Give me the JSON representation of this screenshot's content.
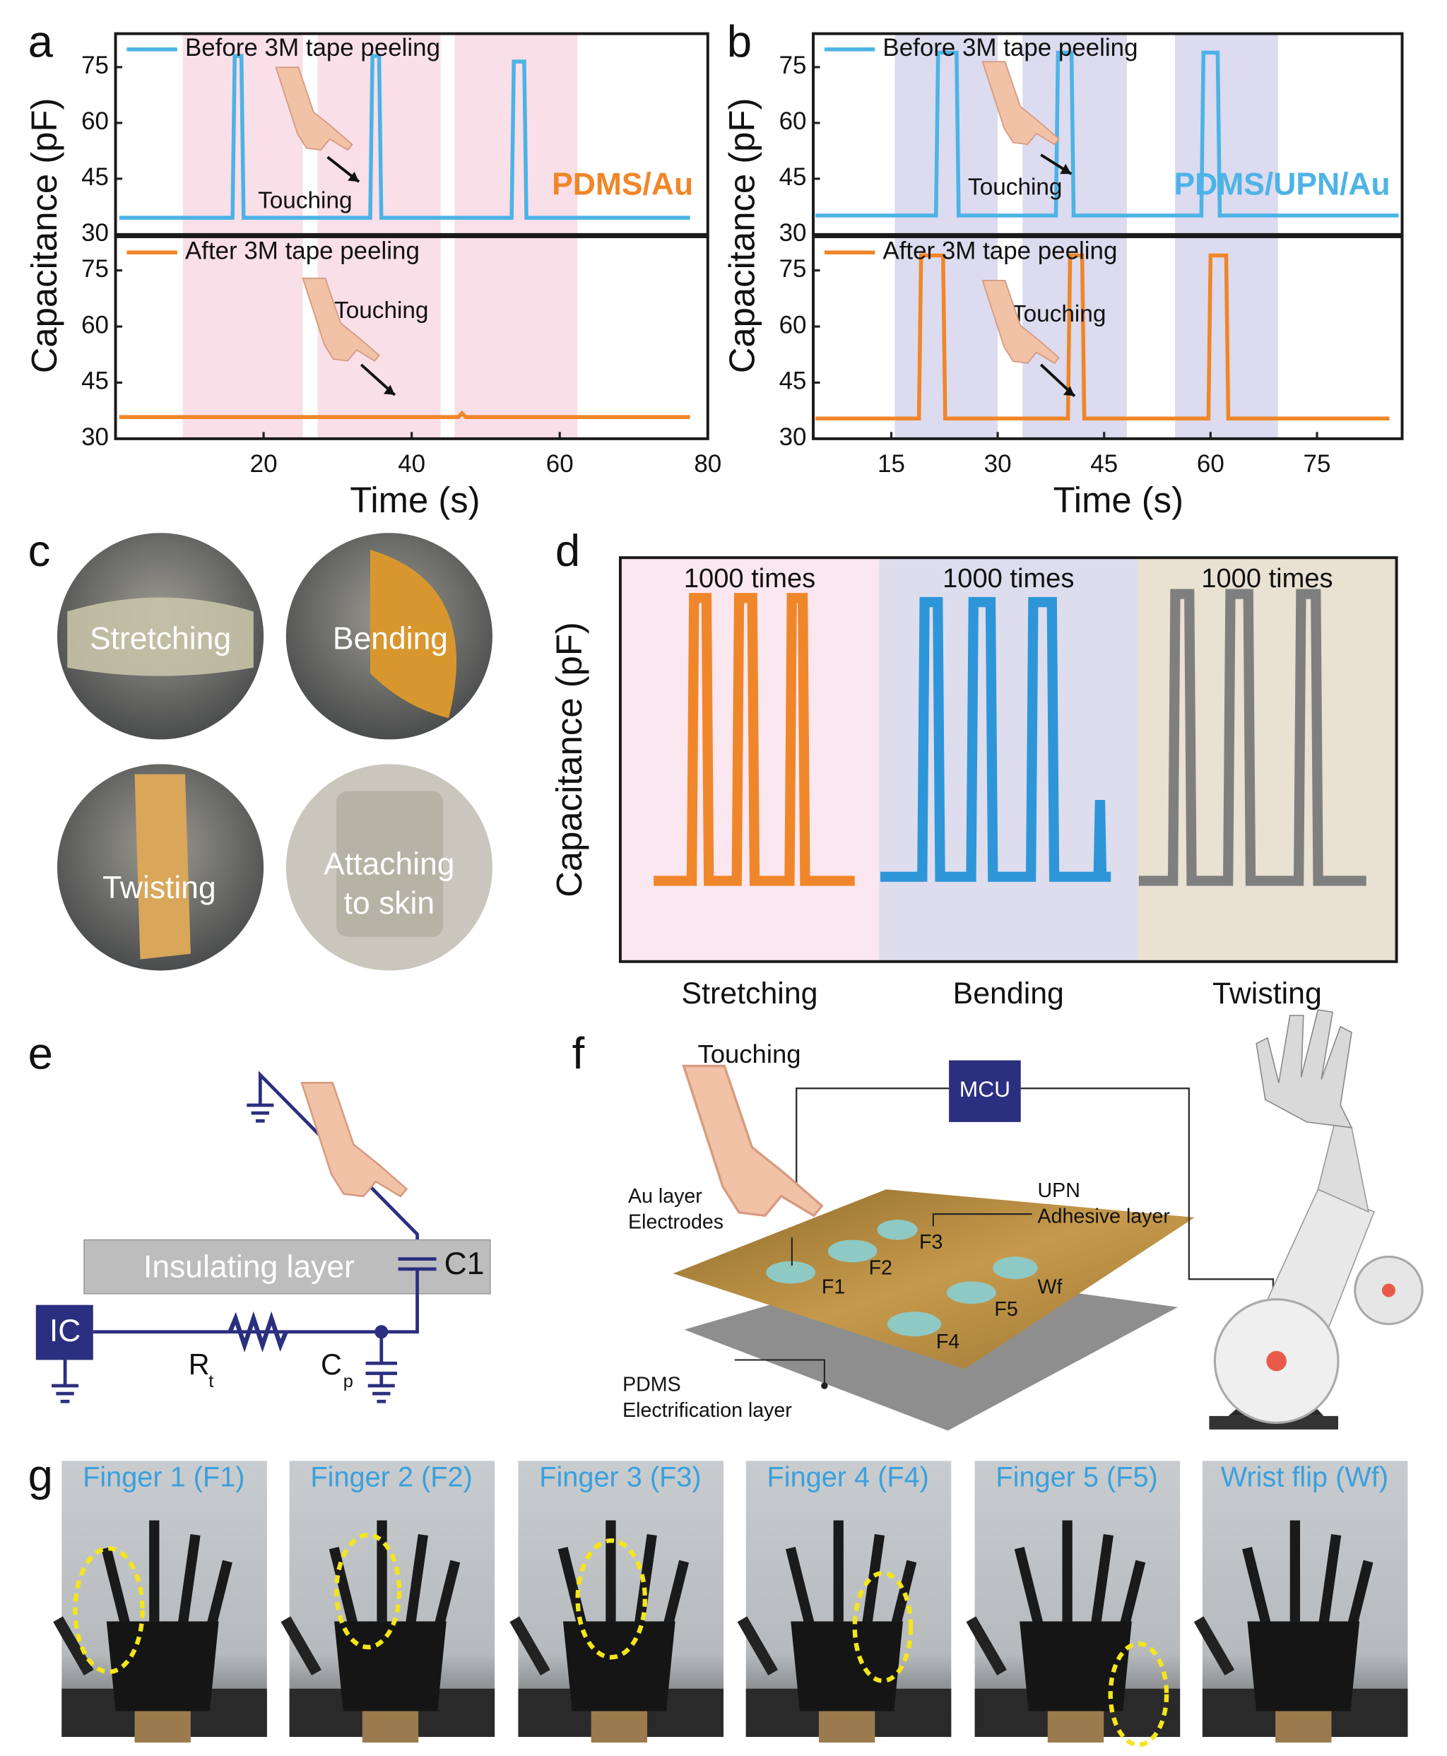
{
  "panel_labels": [
    "a",
    "b",
    "c",
    "d",
    "e",
    "f",
    "g"
  ],
  "chart_data": [
    {
      "type": "line",
      "ylabel": "Capacitance (pF)",
      "xlim": [
        0,
        80
      ],
      "ylim": [
        30,
        84
      ],
      "yticks": [
        30,
        45,
        60,
        75
      ],
      "shaded_regions": [
        [
          9.1,
          25.3
        ],
        [
          27.3,
          43.9
        ],
        [
          45.8,
          62.4
        ]
      ],
      "shade_color": "#f9dfe8",
      "series": [
        {
          "name": "Before 3M tape peeling",
          "color": "#4db3e6",
          "x": [
            0.5,
            15.8,
            16.1,
            17.0,
            17.3,
            34.4,
            34.7,
            35.6,
            35.9,
            53.5,
            53.8,
            55.2,
            55.5,
            77.6
          ],
          "values": [
            34.5,
            34.5,
            78,
            78,
            34.5,
            34.5,
            78,
            78,
            34.5,
            34.5,
            76.5,
            76.5,
            34.5,
            34.5
          ]
        }
      ],
      "annotations": [
        "Touching",
        "PDMS/Au"
      ]
    },
    {
      "type": "line",
      "xlabel": "Time (s)",
      "xlim": [
        0,
        80
      ],
      "ylim": [
        30,
        84
      ],
      "yticks": [
        30,
        45,
        60,
        75
      ],
      "xticks": [
        20,
        40,
        60,
        80
      ],
      "shaded_regions": [
        [
          9.1,
          25.3
        ],
        [
          27.3,
          43.9
        ],
        [
          45.8,
          62.4
        ]
      ],
      "shade_color": "#f9dfe8",
      "series": [
        {
          "name": "After 3M tape peeling",
          "color": "#f0862a",
          "x": [
            0.5,
            46.3,
            46.8,
            47.3,
            77.6
          ],
          "values": [
            35.8,
            35.8,
            36.8,
            35.8,
            35.8
          ]
        }
      ],
      "annotations": [
        "Touching"
      ]
    },
    {
      "type": "line",
      "ylabel": "Capacitance (pF)",
      "xlim": [
        4,
        87
      ],
      "ylim": [
        30,
        84
      ],
      "yticks": [
        30,
        45,
        60,
        75
      ],
      "shaded_regions": [
        [
          15.5,
          30
        ],
        [
          33.5,
          48.2
        ],
        [
          55,
          69.5
        ]
      ],
      "shade_color": "#dcdbef",
      "series": [
        {
          "name": "Before 3M tape peeling",
          "color": "#4db3e6",
          "x": [
            4.3,
            21.3,
            21.6,
            24.2,
            24.5,
            38.2,
            38.5,
            40.4,
            40.7,
            58.7,
            59,
            61,
            61.3,
            86.5
          ],
          "values": [
            35.1,
            35.1,
            78.9,
            78.9,
            35.1,
            35.1,
            78.9,
            78.9,
            35.1,
            35.1,
            78.9,
            78.9,
            35.1,
            35.1
          ]
        }
      ],
      "annotations": [
        "Touching",
        "PDMS/UPN/Au"
      ]
    },
    {
      "type": "line",
      "xlabel": "Time (s)",
      "xlim": [
        4,
        87
      ],
      "ylim": [
        30,
        84
      ],
      "yticks": [
        30,
        45,
        60,
        75
      ],
      "xticks": [
        15,
        30,
        45,
        60,
        75
      ],
      "shaded_regions": [
        [
          15.5,
          30
        ],
        [
          33.5,
          48.2
        ],
        [
          55,
          69.5
        ]
      ],
      "shade_color": "#dcdbef",
      "series": [
        {
          "name": "After 3M tape peeling",
          "color": "#f0862a",
          "x": [
            4.3,
            18.9,
            19.2,
            22.3,
            22.6,
            39.9,
            40.2,
            41.9,
            42.2,
            59.7,
            60,
            62.2,
            62.5,
            85.2
          ],
          "values": [
            35.4,
            35.4,
            79,
            79,
            35.4,
            35.4,
            79,
            79,
            35.4,
            35.4,
            79,
            79,
            35.4,
            35.4
          ]
        }
      ],
      "annotations": [
        "Touching"
      ]
    },
    {
      "type": "line",
      "ylabel": "Capacitance (pF)",
      "xlim": [
        0,
        100
      ],
      "ylim": [
        0,
        100
      ],
      "categories": [
        "Stretching",
        "Bending",
        "Twisting"
      ],
      "region_labels": [
        "1000 times",
        "1000 times",
        "1000 times"
      ],
      "region_colors": [
        "#fbe7ef",
        "#dedded",
        "#e9e1d1"
      ],
      "series": [
        {
          "color": "#f0862a",
          "x": [
            4.3,
            9.2,
            9.5,
            11.1,
            11.4,
            15,
            15.3,
            17,
            17.3,
            21.8,
            22.1,
            23.5,
            23.8,
            30.2
          ],
          "values": [
            20,
            20,
            90,
            90,
            20,
            20,
            90,
            90,
            20,
            20,
            90,
            90,
            20,
            20
          ]
        },
        {
          "color": "#2e96d8",
          "x": [
            33.5,
            38.9,
            39.2,
            40.9,
            41.2,
            45.2,
            45.5,
            47.7,
            48,
            52.9,
            53.2,
            55.6,
            55.9,
            61.6,
            61.8,
            62,
            63.2
          ],
          "values": [
            21,
            21,
            89,
            89,
            21,
            21,
            89,
            89,
            21,
            21,
            89,
            89,
            21,
            21,
            40,
            21,
            21
          ]
        },
        {
          "color": "#7f7f7f",
          "x": [
            66.8,
            71.2,
            71.5,
            73.3,
            73.6,
            78.3,
            78.6,
            80.9,
            81.2,
            87.4,
            87.7,
            89.6,
            89.9,
            96.1
          ],
          "values": [
            20,
            20,
            91,
            91,
            20,
            20,
            91,
            91,
            20,
            20,
            91,
            91,
            20,
            20
          ]
        }
      ]
    }
  ],
  "photos_c": [
    [
      "Stretching"
    ],
    [
      "Bending"
    ],
    [
      "Twisting"
    ],
    [
      "Attaching",
      "to skin"
    ]
  ],
  "circuit_e": {
    "insulating": "Insulating layer",
    "c1": "C1",
    "ic": "IC",
    "rt": [
      "R",
      "t"
    ],
    "cp": [
      "C",
      "p"
    ]
  },
  "diagram_f": {
    "touching": "Touching",
    "mcu": "MCU",
    "au": [
      "Au layer",
      "Electrodes"
    ],
    "upn": [
      "UPN",
      "Adhesive layer"
    ],
    "pdms": [
      "PDMS",
      "Electrification layer"
    ],
    "electrodes": [
      "F1",
      "F2",
      "F3",
      "F4",
      "F5",
      "Wf"
    ]
  },
  "photos_g": [
    "Finger 1 (F1)",
    "Finger 2 (F2)",
    "Finger 3 (F3)",
    "Finger 4 (F4)",
    "Finger 5 (F5)",
    "Wrist flip (Wf)"
  ]
}
